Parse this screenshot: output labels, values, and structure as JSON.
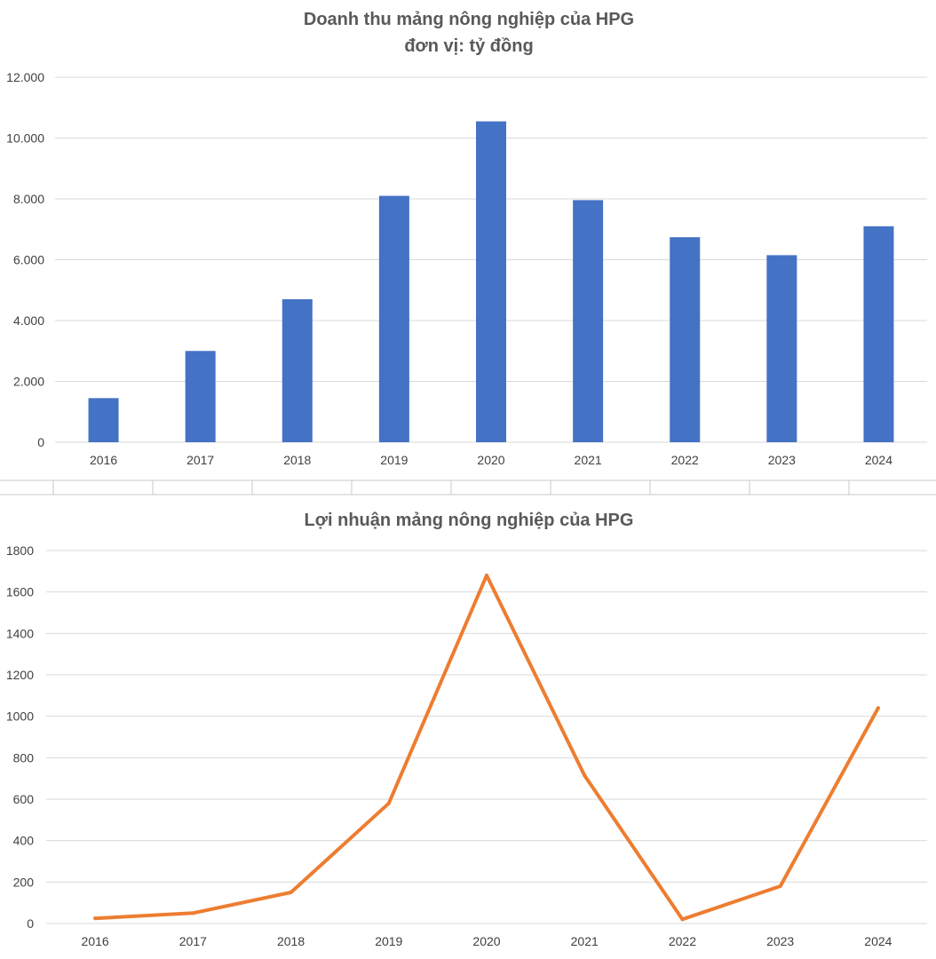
{
  "chart_data": [
    {
      "type": "bar",
      "title": "Doanh thu mảng nông nghiệp của HPG",
      "subtitle": "đơn vị: tỷ đồng",
      "categories": [
        "2016",
        "2017",
        "2018",
        "2019",
        "2020",
        "2021",
        "2022",
        "2023",
        "2024"
      ],
      "series": [
        {
          "values": [
            1450,
            3000,
            4700,
            8100,
            10550,
            7960,
            6740,
            6150,
            7100
          ]
        }
      ],
      "ylim": [
        0,
        12000
      ],
      "yticks": [
        0,
        2000,
        4000,
        6000,
        8000,
        10000,
        12000
      ],
      "ytick_labels": [
        "0",
        "2.000",
        "4.000",
        "6.000",
        "8.000",
        "10.000",
        "12.000"
      ],
      "grid": true,
      "color": "#4472C4"
    },
    {
      "type": "line",
      "title": "Lợi nhuận mảng nông nghiệp của HPG",
      "categories": [
        "2016",
        "2017",
        "2018",
        "2019",
        "2020",
        "2021",
        "2022",
        "2023",
        "2024"
      ],
      "series": [
        {
          "values": [
            25,
            50,
            150,
            580,
            1680,
            715,
            20,
            180,
            1040
          ]
        }
      ],
      "ylim": [
        0,
        1800
      ],
      "yticks": [
        0,
        200,
        400,
        600,
        800,
        1000,
        1200,
        1400,
        1600,
        1800
      ],
      "ytick_labels": [
        "0",
        "200",
        "400",
        "600",
        "800",
        "1000",
        "1200",
        "1400",
        "1600",
        "1800"
      ],
      "grid": true,
      "color": "#ED7D31"
    }
  ]
}
